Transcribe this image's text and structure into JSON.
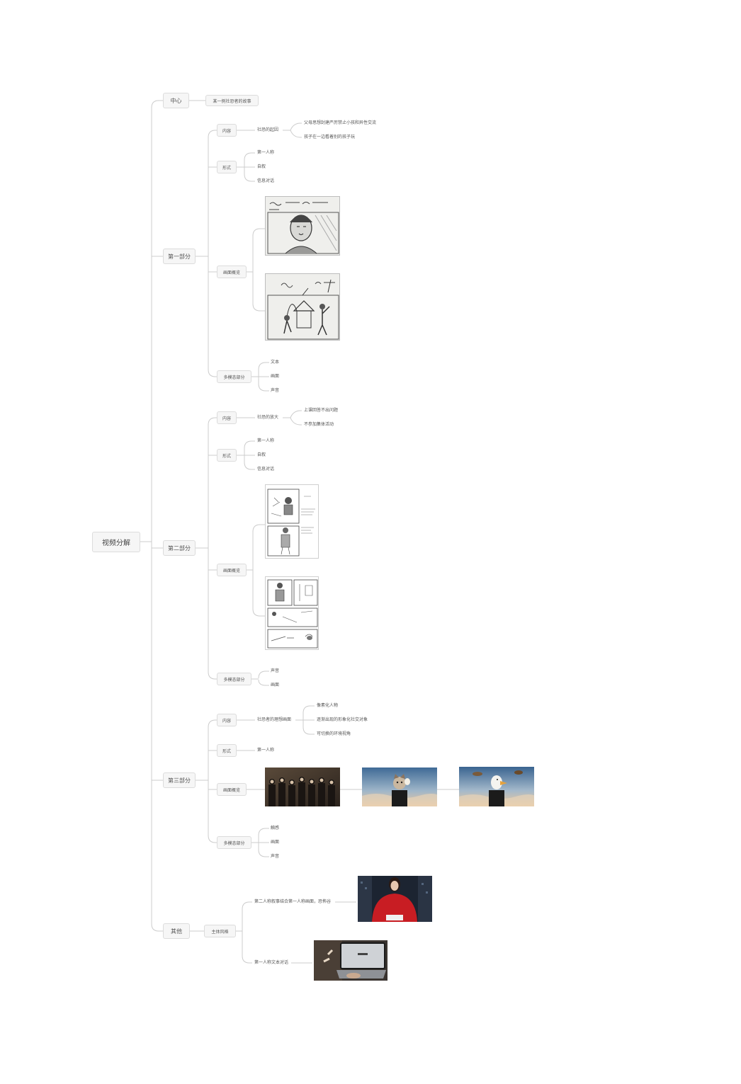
{
  "root": "视频分解",
  "center": {
    "label": "中心",
    "value": "某一例社恐者的故事"
  },
  "part1": {
    "label": "第一部分",
    "content": {
      "label": "内容",
      "sub": "社恐的起因",
      "items": [
        "父母思想封建严厉禁止小孩和异性交流",
        "孩子在一边看着别的孩子玩"
      ]
    },
    "form": {
      "label": "形式",
      "items": [
        "第一人称",
        "自叙",
        "信息对话"
      ]
    },
    "visual": {
      "label": "画面概览"
    },
    "modal": {
      "label": "多模态部分",
      "items": [
        "文本",
        "画面",
        "声音"
      ]
    }
  },
  "part2": {
    "label": "第二部分",
    "content": {
      "label": "内容",
      "sub": "社恐的放大",
      "items": [
        "上课回答不出问题",
        "不参加集体活动"
      ]
    },
    "form": {
      "label": "形式",
      "items": [
        "第一人称",
        "自叙",
        "信息对话"
      ]
    },
    "visual": {
      "label": "画面概览"
    },
    "modal": {
      "label": "多模态部分",
      "items": [
        "声音",
        "画面"
      ]
    }
  },
  "part3": {
    "label": "第三部分",
    "content": {
      "label": "内容",
      "sub": "社恐者的理想画面",
      "items": [
        "像素化人物",
        "逐渐出现的形象化社交对象",
        "可切换的环境视角"
      ]
    },
    "form": {
      "label": "形式",
      "items": [
        "第一人称"
      ]
    },
    "visual": {
      "label": "画面概览"
    },
    "modal": {
      "label": "多模态部分",
      "items": [
        "触感",
        "画面",
        "声音"
      ]
    }
  },
  "other": {
    "label": "其他",
    "style": {
      "label": "主体风格",
      "items": [
        "第二人称叙事结合第一人称画面，恐怖谷",
        "第一人称文本对话"
      ]
    }
  },
  "colors": {
    "line": "#c9c9c9",
    "node_bg": "#f6f6f6",
    "node_border": "#dcdcdc",
    "text": "#555555"
  }
}
